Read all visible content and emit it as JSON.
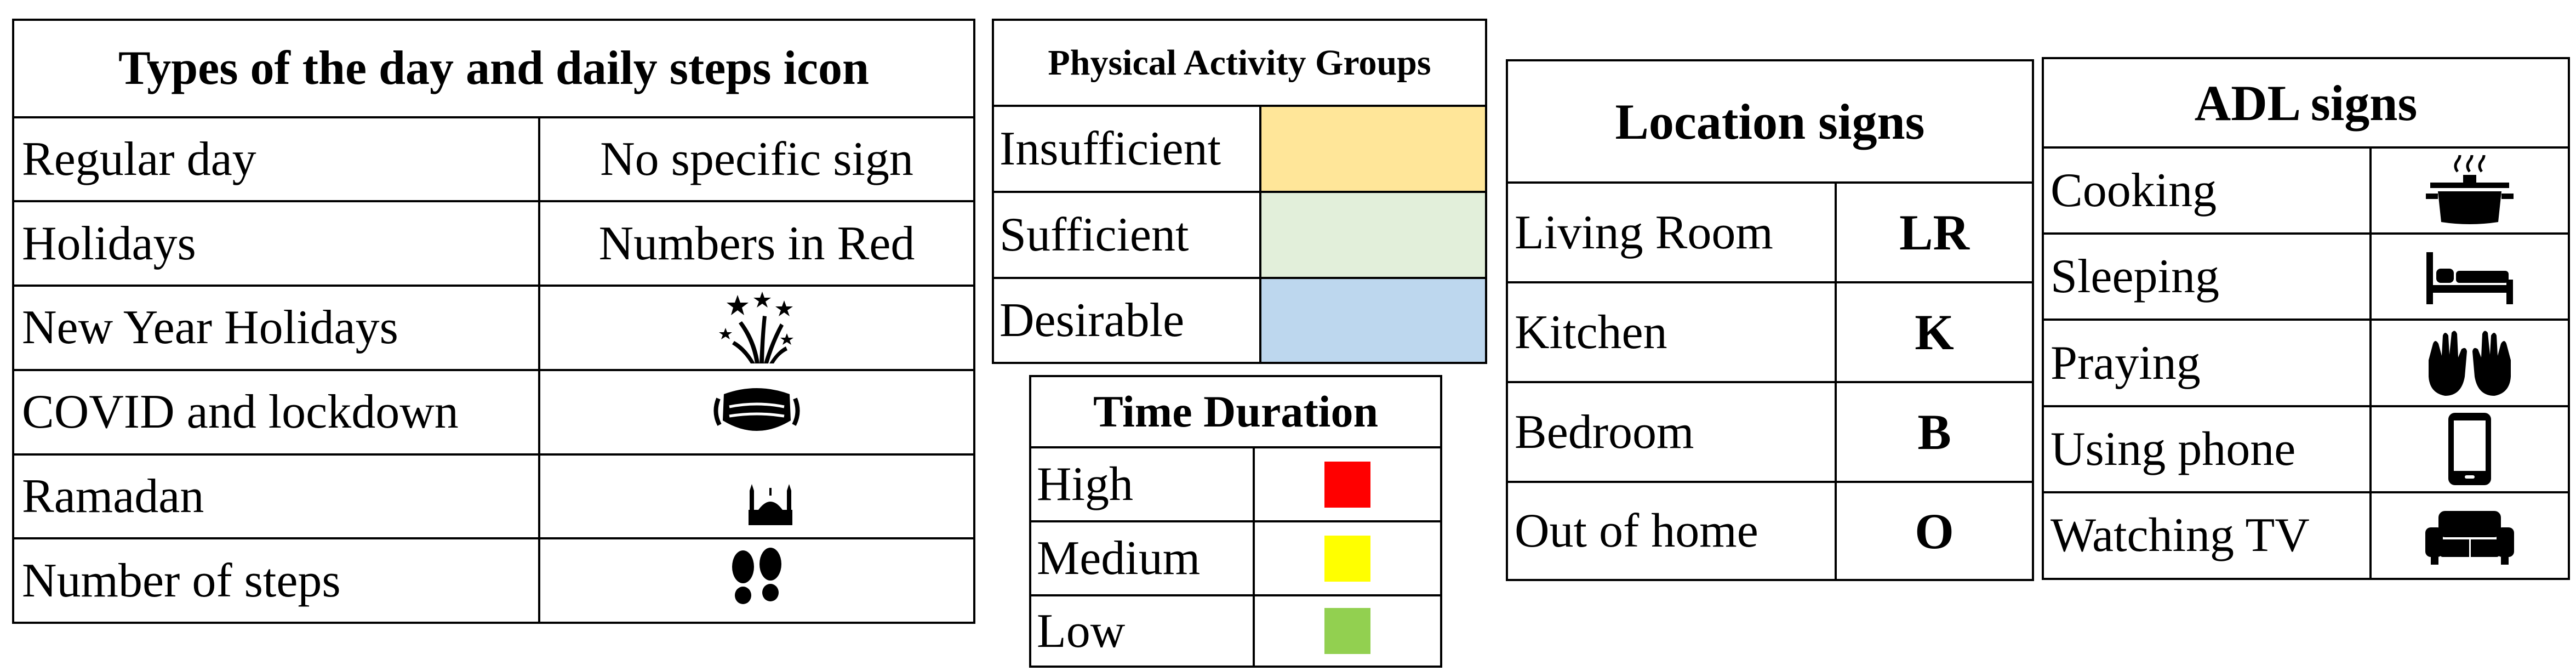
{
  "day_types": {
    "title": "Types of the day and daily steps icon",
    "rows": [
      {
        "label": "Regular day",
        "value": "No specific sign"
      },
      {
        "label": "Holidays",
        "value": "Numbers in Red"
      },
      {
        "label": "New Year Holidays",
        "icon": "fireworks-icon"
      },
      {
        "label": "COVID and lockdown",
        "icon": "face-mask-icon"
      },
      {
        "label": "Ramadan",
        "icon": "crescent-mosque-icon"
      },
      {
        "label": "Number of steps",
        "icon": "footprints-icon"
      }
    ]
  },
  "activity_groups": {
    "title": "Physical Activity Groups",
    "rows": [
      {
        "label": "Insufficient",
        "color": "#FFE699"
      },
      {
        "label": "Sufficient",
        "color": "#E2EFDA"
      },
      {
        "label": "Desirable",
        "color": "#BDD7EE"
      }
    ]
  },
  "time_duration": {
    "title": "Time Duration",
    "rows": [
      {
        "label": "High",
        "color": "#FF0000"
      },
      {
        "label": "Medium",
        "color": "#FFFF00"
      },
      {
        "label": "Low",
        "color": "#92D050"
      }
    ]
  },
  "location_signs": {
    "title": "Location signs",
    "rows": [
      {
        "label": "Living Room",
        "sign": "LR"
      },
      {
        "label": "Kitchen",
        "sign": "K"
      },
      {
        "label": "Bedroom",
        "sign": "B"
      },
      {
        "label": "Out of home",
        "sign": "O"
      }
    ]
  },
  "adl_signs": {
    "title": "ADL signs",
    "rows": [
      {
        "label": "Cooking",
        "icon": "cooking-pot-icon"
      },
      {
        "label": "Sleeping",
        "icon": "bed-icon"
      },
      {
        "label": "Praying",
        "icon": "praying-hands-icon"
      },
      {
        "label": "Using phone",
        "icon": "smartphone-icon"
      },
      {
        "label": "Watching TV",
        "icon": "sofa-icon"
      }
    ]
  }
}
